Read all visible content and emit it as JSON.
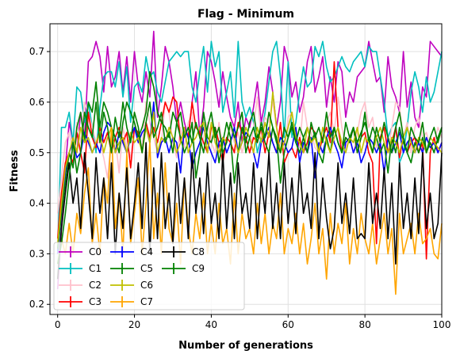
{
  "chart_data": {
    "type": "line",
    "title": "Flag - Minimum",
    "xlabel": "Number of generations",
    "ylabel": "Fitness",
    "xlim": [
      -2,
      100
    ],
    "ylim": [
      0.18,
      0.755
    ],
    "xticks": [
      0,
      20,
      40,
      60,
      80,
      100
    ],
    "yticks": [
      0.2,
      0.3,
      0.4,
      0.5,
      0.6,
      0.7
    ],
    "xtick_labels": [
      "0",
      "20",
      "40",
      "60",
      "80",
      "100"
    ],
    "ytick_labels": [
      "0.2",
      "0.3",
      "0.4",
      "0.5",
      "0.6",
      "0.7"
    ],
    "grid": true,
    "legend": {
      "placement": "lower-left",
      "columns": 3
    },
    "x": [
      0,
      1,
      2,
      3,
      4,
      5,
      6,
      7,
      8,
      9,
      10,
      11,
      12,
      13,
      14,
      15,
      16,
      17,
      18,
      19,
      20,
      21,
      22,
      23,
      24,
      25,
      26,
      27,
      28,
      29,
      30,
      31,
      32,
      33,
      34,
      35,
      36,
      37,
      38,
      39,
      40,
      41,
      42,
      43,
      44,
      45,
      46,
      47,
      48,
      49,
      50,
      51,
      52,
      53,
      54,
      55,
      56,
      57,
      58,
      59,
      60,
      61,
      62,
      63,
      64,
      65,
      66,
      67,
      68,
      69,
      70,
      71,
      72,
      73,
      74,
      75,
      76,
      77,
      78,
      79,
      80,
      81,
      82,
      83,
      84,
      85,
      86,
      87,
      88,
      89,
      90,
      91,
      92,
      93,
      94,
      95,
      96,
      97,
      98,
      99,
      100
    ],
    "series": [
      {
        "name": "C0",
        "color": "#bf00bf",
        "values": [
          0.23,
          0.35,
          0.47,
          0.56,
          0.52,
          0.5,
          0.58,
          0.53,
          0.68,
          0.69,
          0.72,
          0.69,
          0.62,
          0.71,
          0.63,
          0.65,
          0.7,
          0.62,
          0.69,
          0.6,
          0.7,
          0.63,
          0.6,
          0.66,
          0.61,
          0.74,
          0.57,
          0.63,
          0.71,
          0.68,
          0.63,
          0.56,
          0.6,
          0.56,
          0.53,
          0.6,
          0.66,
          0.53,
          0.59,
          0.7,
          0.68,
          0.64,
          0.59,
          0.66,
          0.61,
          0.57,
          0.55,
          0.6,
          0.52,
          0.57,
          0.55,
          0.59,
          0.64,
          0.56,
          0.6,
          0.67,
          0.62,
          0.55,
          0.6,
          0.71,
          0.68,
          0.61,
          0.64,
          0.58,
          0.61,
          0.68,
          0.71,
          0.62,
          0.65,
          0.69,
          0.59,
          0.65,
          0.6,
          0.68,
          0.66,
          0.57,
          0.62,
          0.6,
          0.65,
          0.66,
          0.67,
          0.72,
          0.68,
          0.64,
          0.65,
          0.58,
          0.69,
          0.63,
          0.61,
          0.58,
          0.7,
          0.59,
          0.64,
          0.57,
          0.55,
          0.63,
          0.61,
          0.72,
          0.71,
          0.7,
          0.69
        ]
      },
      {
        "name": "C1",
        "color": "#00bfbf",
        "values": [
          0.3,
          0.55,
          0.55,
          0.58,
          0.52,
          0.63,
          0.62,
          0.56,
          0.6,
          0.55,
          0.5,
          0.59,
          0.65,
          0.66,
          0.66,
          0.63,
          0.68,
          0.61,
          0.67,
          0.56,
          0.63,
          0.64,
          0.62,
          0.69,
          0.65,
          0.66,
          0.62,
          0.6,
          0.64,
          0.68,
          0.69,
          0.7,
          0.69,
          0.7,
          0.7,
          0.63,
          0.6,
          0.66,
          0.71,
          0.62,
          0.72,
          0.67,
          0.7,
          0.58,
          0.62,
          0.66,
          0.57,
          0.72,
          0.6,
          0.57,
          0.59,
          0.56,
          0.5,
          0.53,
          0.58,
          0.64,
          0.7,
          0.72,
          0.65,
          0.53,
          0.68,
          0.53,
          0.56,
          0.62,
          0.67,
          0.63,
          0.64,
          0.71,
          0.69,
          0.72,
          0.67,
          0.64,
          0.65,
          0.67,
          0.69,
          0.67,
          0.66,
          0.68,
          0.69,
          0.7,
          0.67,
          0.71,
          0.7,
          0.7,
          0.65,
          0.6,
          0.53,
          0.55,
          0.56,
          0.48,
          0.5,
          0.55,
          0.62,
          0.66,
          0.63,
          0.58,
          0.65,
          0.6,
          0.62,
          0.66,
          0.7
        ]
      },
      {
        "name": "C2",
        "color": "#ffc0cb",
        "values": [
          0.38,
          0.45,
          0.52,
          0.54,
          0.5,
          0.56,
          0.52,
          0.6,
          0.58,
          0.55,
          0.52,
          0.52,
          0.49,
          0.45,
          0.53,
          0.53,
          0.46,
          0.55,
          0.51,
          0.49,
          0.55,
          0.52,
          0.51,
          0.6,
          0.56,
          0.53,
          0.5,
          0.52,
          0.6,
          0.58,
          0.52,
          0.49,
          0.55,
          0.51,
          0.56,
          0.58,
          0.45,
          0.5,
          0.53,
          0.56,
          0.52,
          0.5,
          0.56,
          0.51,
          0.53,
          0.55,
          0.52,
          0.54,
          0.5,
          0.53,
          0.5,
          0.55,
          0.61,
          0.53,
          0.57,
          0.56,
          0.6,
          0.55,
          0.52,
          0.5,
          0.57,
          0.58,
          0.53,
          0.51,
          0.6,
          0.55,
          0.54,
          0.51,
          0.5,
          0.53,
          0.56,
          0.58,
          0.54,
          0.61,
          0.55,
          0.51,
          0.53,
          0.5,
          0.54,
          0.58,
          0.6,
          0.55,
          0.57,
          0.51,
          0.53,
          0.56,
          0.5,
          0.55,
          0.6,
          0.59,
          0.53,
          0.56,
          0.5,
          0.55,
          0.57,
          0.53,
          0.54,
          0.51,
          0.52,
          0.55,
          0.53
        ]
      },
      {
        "name": "C3",
        "color": "#ff0000",
        "values": [
          0.33,
          0.42,
          0.48,
          0.5,
          0.48,
          0.54,
          0.5,
          0.46,
          0.58,
          0.53,
          0.51,
          0.55,
          0.52,
          0.54,
          0.5,
          0.53,
          0.55,
          0.52,
          0.54,
          0.47,
          0.55,
          0.54,
          0.5,
          0.56,
          0.53,
          0.55,
          0.52,
          0.56,
          0.6,
          0.58,
          0.61,
          0.6,
          0.52,
          0.55,
          0.53,
          0.6,
          0.55,
          0.54,
          0.52,
          0.5,
          0.55,
          0.55,
          0.52,
          0.48,
          0.53,
          0.52,
          0.5,
          0.56,
          0.54,
          0.53,
          0.5,
          0.53,
          0.52,
          0.55,
          0.5,
          0.54,
          0.52,
          0.5,
          0.56,
          0.48,
          0.5,
          0.51,
          0.49,
          0.53,
          0.5,
          0.52,
          0.55,
          0.54,
          0.5,
          0.53,
          0.55,
          0.52,
          0.68,
          0.55,
          0.5,
          0.53,
          0.52,
          0.55,
          0.5,
          0.53,
          0.54,
          0.5,
          0.48,
          0.32,
          0.53,
          0.55,
          0.5,
          0.52,
          0.55,
          0.49,
          0.53,
          0.5,
          0.52,
          0.53,
          0.5,
          0.52,
          0.29,
          0.5,
          0.53,
          0.5,
          0.52
        ]
      },
      {
        "name": "C4",
        "color": "#0000ff",
        "values": [
          0.3,
          0.38,
          0.46,
          0.5,
          0.52,
          0.49,
          0.5,
          0.54,
          0.52,
          0.5,
          0.52,
          0.5,
          0.54,
          0.56,
          0.55,
          0.5,
          0.54,
          0.52,
          0.5,
          0.53,
          0.55,
          0.52,
          0.54,
          0.55,
          0.52,
          0.6,
          0.49,
          0.52,
          0.53,
          0.5,
          0.53,
          0.52,
          0.46,
          0.55,
          0.53,
          0.47,
          0.5,
          0.52,
          0.55,
          0.52,
          0.5,
          0.48,
          0.52,
          0.53,
          0.5,
          0.52,
          0.55,
          0.5,
          0.52,
          0.54,
          0.53,
          0.5,
          0.47,
          0.52,
          0.53,
          0.55,
          0.52,
          0.5,
          0.53,
          0.52,
          0.5,
          0.51,
          0.55,
          0.48,
          0.52,
          0.5,
          0.53,
          0.45,
          0.52,
          0.5,
          0.53,
          0.55,
          0.52,
          0.5,
          0.47,
          0.52,
          0.53,
          0.5,
          0.52,
          0.48,
          0.5,
          0.53,
          0.52,
          0.5,
          0.52,
          0.46,
          0.53,
          0.5,
          0.52,
          0.54,
          0.5,
          0.52,
          0.53,
          0.5,
          0.52,
          0.5,
          0.53,
          0.51,
          0.52,
          0.5,
          0.52
        ]
      },
      {
        "name": "C5",
        "color": "#008000",
        "values": [
          0.31,
          0.38,
          0.44,
          0.5,
          0.47,
          0.55,
          0.58,
          0.52,
          0.6,
          0.58,
          0.64,
          0.55,
          0.6,
          0.58,
          0.55,
          0.53,
          0.5,
          0.56,
          0.6,
          0.58,
          0.56,
          0.53,
          0.55,
          0.58,
          0.66,
          0.63,
          0.58,
          0.56,
          0.55,
          0.53,
          0.58,
          0.56,
          0.53,
          0.5,
          0.52,
          0.56,
          0.45,
          0.5,
          0.58,
          0.53,
          0.52,
          0.55,
          0.48,
          0.52,
          0.56,
          0.53,
          0.44,
          0.5,
          0.55,
          0.52,
          0.56,
          0.58,
          0.53,
          0.55,
          0.52,
          0.5,
          0.55,
          0.53,
          0.44,
          0.5,
          0.53,
          0.55,
          0.52,
          0.5,
          0.53,
          0.55,
          0.52,
          0.54,
          0.5,
          0.48,
          0.53,
          0.5,
          0.55,
          0.52,
          0.5,
          0.53,
          0.52,
          0.55,
          0.5,
          0.53,
          0.58,
          0.52,
          0.55,
          0.53,
          0.5,
          0.52,
          0.46,
          0.53,
          0.5,
          0.55,
          0.52,
          0.5,
          0.48,
          0.52,
          0.5,
          0.53,
          0.5,
          0.52,
          0.5,
          0.53,
          0.55
        ]
      },
      {
        "name": "C6",
        "color": "#bfbf00",
        "values": [
          0.32,
          0.4,
          0.47,
          0.5,
          0.53,
          0.5,
          0.55,
          0.52,
          0.53,
          0.5,
          0.52,
          0.54,
          0.5,
          0.53,
          0.55,
          0.5,
          0.52,
          0.53,
          0.5,
          0.54,
          0.52,
          0.53,
          0.5,
          0.55,
          0.52,
          0.58,
          0.5,
          0.53,
          0.52,
          0.55,
          0.53,
          0.5,
          0.52,
          0.55,
          0.5,
          0.52,
          0.53,
          0.55,
          0.56,
          0.5,
          0.56,
          0.52,
          0.5,
          0.53,
          0.52,
          0.56,
          0.53,
          0.5,
          0.52,
          0.55,
          0.53,
          0.5,
          0.55,
          0.52,
          0.56,
          0.53,
          0.62,
          0.55,
          0.5,
          0.52,
          0.55,
          0.58,
          0.53,
          0.52,
          0.5,
          0.55,
          0.52,
          0.53,
          0.5,
          0.55,
          0.52,
          0.5,
          0.53,
          0.55,
          0.52,
          0.5,
          0.53,
          0.52,
          0.55,
          0.5,
          0.53,
          0.52,
          0.5,
          0.53,
          0.55,
          0.52,
          0.5,
          0.53,
          0.52,
          0.5,
          0.53,
          0.55,
          0.52,
          0.5,
          0.53,
          0.52,
          0.5,
          0.53,
          0.52,
          0.51,
          0.5
        ]
      },
      {
        "name": "C7",
        "color": "#ffa500",
        "values": [
          0.28,
          0.33,
          0.3,
          0.36,
          0.3,
          0.38,
          0.34,
          0.42,
          0.47,
          0.32,
          0.38,
          0.3,
          0.45,
          0.4,
          0.55,
          0.35,
          0.42,
          0.3,
          0.5,
          0.32,
          0.38,
          0.45,
          0.3,
          0.4,
          0.52,
          0.33,
          0.42,
          0.3,
          0.48,
          0.35,
          0.32,
          0.4,
          0.28,
          0.45,
          0.35,
          0.3,
          0.38,
          0.33,
          0.42,
          0.3,
          0.36,
          0.3,
          0.4,
          0.32,
          0.35,
          0.28,
          0.42,
          0.3,
          0.38,
          0.33,
          0.35,
          0.3,
          0.4,
          0.32,
          0.38,
          0.3,
          0.36,
          0.33,
          0.42,
          0.3,
          0.35,
          0.32,
          0.38,
          0.3,
          0.36,
          0.28,
          0.33,
          0.4,
          0.3,
          0.35,
          0.25,
          0.38,
          0.3,
          0.36,
          0.32,
          0.4,
          0.28,
          0.35,
          0.3,
          0.38,
          0.33,
          0.3,
          0.36,
          0.28,
          0.33,
          0.38,
          0.3,
          0.35,
          0.22,
          0.38,
          0.3,
          0.33,
          0.36,
          0.3,
          0.38,
          0.32,
          0.33,
          0.35,
          0.3,
          0.29,
          0.36
        ]
      },
      {
        "name": "C8",
        "color": "#000000",
        "values": [
          0.25,
          0.35,
          0.42,
          0.48,
          0.4,
          0.45,
          0.35,
          0.5,
          0.42,
          0.33,
          0.49,
          0.38,
          0.45,
          0.33,
          0.48,
          0.3,
          0.42,
          0.35,
          0.47,
          0.33,
          0.4,
          0.48,
          0.35,
          0.52,
          0.3,
          0.47,
          0.33,
          0.5,
          0.35,
          0.42,
          0.32,
          0.48,
          0.36,
          0.45,
          0.33,
          0.5,
          0.38,
          0.45,
          0.34,
          0.48,
          0.36,
          0.42,
          0.33,
          0.5,
          0.35,
          0.46,
          0.33,
          0.48,
          0.38,
          0.42,
          0.35,
          0.48,
          0.33,
          0.45,
          0.38,
          0.5,
          0.35,
          0.44,
          0.33,
          0.48,
          0.36,
          0.45,
          0.34,
          0.48,
          0.38,
          0.42,
          0.35,
          0.5,
          0.33,
          0.45,
          0.37,
          0.31,
          0.35,
          0.48,
          0.36,
          0.42,
          0.34,
          0.45,
          0.33,
          0.34,
          0.33,
          0.48,
          0.36,
          0.42,
          0.35,
          0.47,
          0.33,
          0.44,
          0.28,
          0.48,
          0.35,
          0.42,
          0.33,
          0.45,
          0.34,
          0.5,
          0.35,
          0.42,
          0.33,
          0.36,
          0.5
        ]
      },
      {
        "name": "C9",
        "color": "#008000",
        "values": [
          0.28,
          0.32,
          0.38,
          0.45,
          0.52,
          0.46,
          0.5,
          0.58,
          0.55,
          0.53,
          0.6,
          0.52,
          0.58,
          0.55,
          0.5,
          0.57,
          0.53,
          0.6,
          0.55,
          0.52,
          0.58,
          0.55,
          0.5,
          0.56,
          0.6,
          0.53,
          0.55,
          0.58,
          0.52,
          0.54,
          0.5,
          0.56,
          0.58,
          0.53,
          0.55,
          0.52,
          0.56,
          0.53,
          0.5,
          0.55,
          0.58,
          0.53,
          0.55,
          0.5,
          0.52,
          0.56,
          0.53,
          0.55,
          0.58,
          0.5,
          0.53,
          0.55,
          0.52,
          0.56,
          0.53,
          0.58,
          0.55,
          0.52,
          0.5,
          0.55,
          0.53,
          0.56,
          0.52,
          0.55,
          0.53,
          0.5,
          0.56,
          0.53,
          0.55,
          0.52,
          0.58,
          0.53,
          0.55,
          0.52,
          0.5,
          0.56,
          0.53,
          0.55,
          0.52,
          0.54,
          0.56,
          0.53,
          0.5,
          0.55,
          0.52,
          0.56,
          0.53,
          0.5,
          0.55,
          0.58,
          0.53,
          0.5,
          0.55,
          0.53,
          0.52,
          0.56,
          0.5,
          0.53,
          0.55,
          0.52,
          0.55
        ]
      }
    ]
  }
}
